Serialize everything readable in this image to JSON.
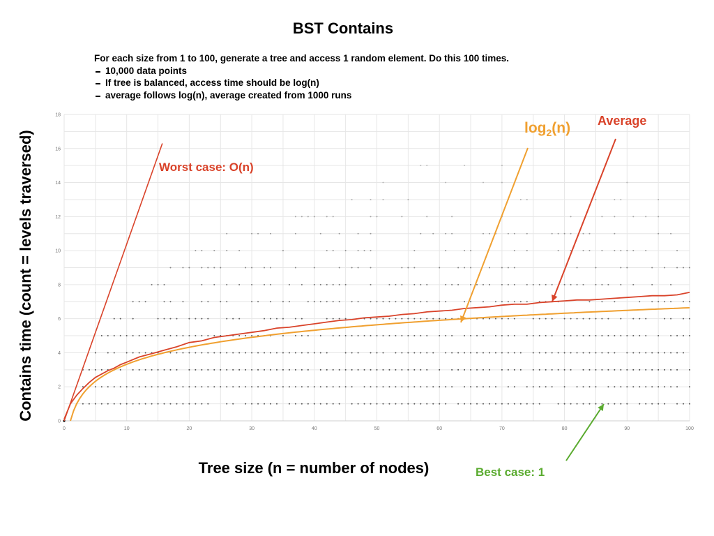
{
  "title": "BST Contains",
  "notes": {
    "intro": "For each size from 1 to 100, generate a tree and access 1 random element. Do this 100 times.",
    "bullets": [
      "10,000 data points",
      "If tree is balanced, access time should be log(n)",
      "average follows log(n), average created from 1000 runs"
    ]
  },
  "colors": {
    "worst": "#d9432a",
    "log": "#f0a030",
    "average": "#d9432a",
    "best": "#5aab2f",
    "grid": "#e6e6e6",
    "dots": "#333333"
  },
  "annotations": {
    "worst": "Worst case: O(n)",
    "log_main": "log",
    "log_sub": "2",
    "log_tail": "(n)",
    "average": "Average",
    "best": "Best case: 1"
  },
  "chart_data": {
    "type": "scatter",
    "title": "BST Contains",
    "xlabel": "Tree size (n = number of nodes)",
    "ylabel": "Contains time (count = levels traversed)",
    "xlim": [
      0,
      100
    ],
    "ylim": [
      0,
      18
    ],
    "x_ticks": [
      0,
      10,
      20,
      30,
      40,
      50,
      60,
      70,
      80,
      90,
      100
    ],
    "y_ticks": [
      0,
      2,
      4,
      6,
      8,
      10,
      12,
      14,
      16,
      18
    ],
    "grid": true,
    "series": [
      {
        "name": "Worst case: O(n)",
        "kind": "line",
        "x": [
          0,
          15.7
        ],
        "y": [
          0,
          16.3
        ]
      },
      {
        "name": "log2(n)",
        "kind": "function",
        "function": "log2(n)",
        "x_range": [
          1,
          100
        ]
      },
      {
        "name": "Average",
        "kind": "line",
        "x": [
          1,
          2,
          3,
          4,
          5,
          6,
          7,
          8,
          9,
          10,
          12,
          14,
          16,
          18,
          20,
          22,
          24,
          26,
          28,
          30,
          32,
          34,
          36,
          38,
          40,
          42,
          44,
          46,
          48,
          50,
          52,
          54,
          56,
          58,
          60,
          62,
          64,
          66,
          68,
          70,
          72,
          74,
          76,
          78,
          80,
          82,
          84,
          86,
          88,
          90,
          92,
          94,
          96,
          98,
          100
        ],
        "y": [
          1.0,
          1.5,
          1.9,
          2.25,
          2.55,
          2.75,
          2.95,
          3.1,
          3.3,
          3.45,
          3.75,
          3.95,
          4.15,
          4.35,
          4.6,
          4.7,
          4.9,
          5.0,
          5.1,
          5.2,
          5.3,
          5.45,
          5.5,
          5.6,
          5.7,
          5.8,
          5.9,
          5.95,
          6.05,
          6.1,
          6.15,
          6.25,
          6.3,
          6.4,
          6.45,
          6.5,
          6.6,
          6.65,
          6.7,
          6.8,
          6.85,
          6.85,
          6.95,
          7.0,
          7.05,
          7.1,
          7.1,
          7.15,
          7.2,
          7.25,
          7.3,
          7.35,
          7.35,
          7.4,
          7.55
        ]
      },
      {
        "name": "Best case: 1",
        "kind": "line",
        "x": [
          0,
          100
        ],
        "y": [
          1,
          1
        ]
      }
    ],
    "scatter_levels": {
      "description": "data points at integer counts",
      "levels": [
        {
          "y": 1,
          "x_from": 2,
          "x_to": 100,
          "density": 0.9
        },
        {
          "y": 2,
          "x_from": 3,
          "x_to": 100,
          "density": 0.9
        },
        {
          "y": 3,
          "x_from": 3,
          "x_to": 100,
          "density": 0.9
        },
        {
          "y": 4,
          "x_from": 4,
          "x_to": 100,
          "density": 0.85
        },
        {
          "y": 5,
          "x_from": 6,
          "x_to": 100,
          "density": 0.8
        },
        {
          "y": 6,
          "x_from": 8,
          "x_to": 100,
          "density": 0.75
        },
        {
          "y": 7,
          "x_from": 10,
          "x_to": 100,
          "density": 0.65
        },
        {
          "y": 8,
          "x_from": 14,
          "x_to": 100,
          "density": 0.55
        },
        {
          "y": 9,
          "x_from": 16,
          "x_to": 100,
          "density": 0.45
        },
        {
          "y": 10,
          "x_from": 20,
          "x_to": 100,
          "density": 0.35
        },
        {
          "y": 11,
          "x_from": 24,
          "x_to": 100,
          "density": 0.28
        },
        {
          "y": 12,
          "x_from": 30,
          "x_to": 100,
          "density": 0.2
        },
        {
          "y": 13,
          "x_from": 35,
          "x_to": 100,
          "density": 0.12
        },
        {
          "y": 14,
          "x_from": 45,
          "x_to": 100,
          "density": 0.06
        },
        {
          "y": 15,
          "x_from": 55,
          "x_to": 100,
          "density": 0.03
        }
      ]
    }
  }
}
